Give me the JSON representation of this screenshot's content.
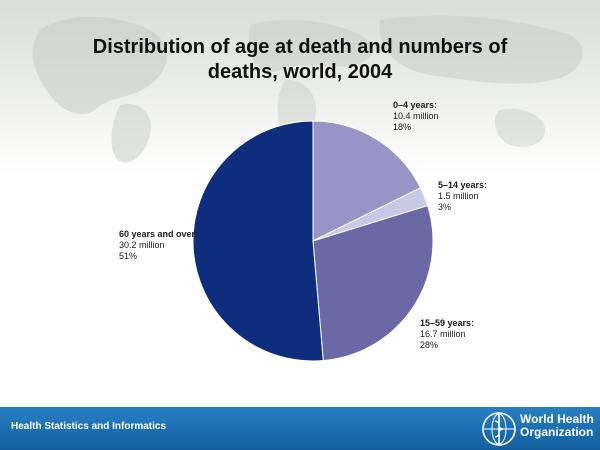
{
  "slide": {
    "title_line1": "Distribution of age at death and numbers of",
    "title_line2": "deaths, world, 2004"
  },
  "footer": {
    "left_text": "Health Statistics and Informatics",
    "org_line1": "World Health",
    "org_line2": "Organization"
  },
  "chart_data": {
    "type": "pie",
    "title": "Distribution of age at death and numbers of deaths, world, 2004",
    "categories": [
      "0–4 years:",
      "5–14 years:",
      "15–59 years:",
      "60 years and over:"
    ],
    "values": [
      10.4,
      1.5,
      16.7,
      30.2
    ],
    "value_labels": [
      "10.4 million",
      "1.5 million",
      "16.7 million",
      "30.2 million"
    ],
    "percent_labels": [
      "18%",
      "3%",
      "28%",
      "51%"
    ],
    "colors": [
      "#9795c6",
      "#c7c9e7",
      "#6b68a6",
      "#0e2d7d"
    ],
    "unit": "million"
  },
  "colors": {
    "footer_bar": "#1c6fb3",
    "title_text": "#111111"
  }
}
